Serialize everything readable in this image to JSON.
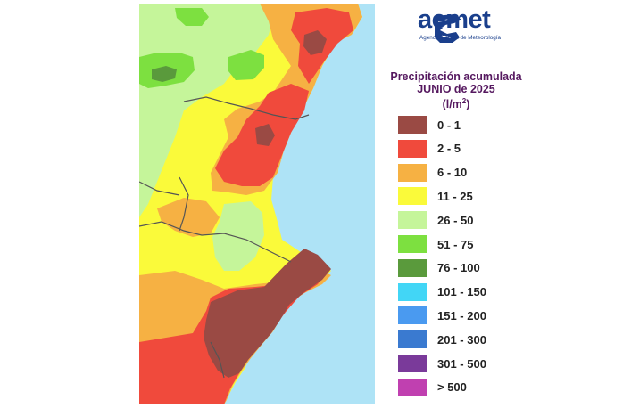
{
  "logo": {
    "word": "aemet",
    "subtitle": "Agencia Estatal de Meteorología"
  },
  "legend": {
    "title_line1": "Precipitación acumulada",
    "title_line2": "JUNIO de 2025",
    "unit_prefix": "(l/m",
    "unit_exp": "2",
    "unit_suffix": ")",
    "items": [
      {
        "label": "0 - 1",
        "color": "#9a4a44"
      },
      {
        "label": "2 - 5",
        "color": "#f04a3c"
      },
      {
        "label": "6 - 10",
        "color": "#f6b143"
      },
      {
        "label": "11 - 25",
        "color": "#fafa3a"
      },
      {
        "label": "26 - 50",
        "color": "#c5f59a"
      },
      {
        "label": "51 - 75",
        "color": "#7de040"
      },
      {
        "label": "76 - 100",
        "color": "#5a9a3c"
      },
      {
        "label": "101 - 150",
        "color": "#42d6f6"
      },
      {
        "label": "151 - 200",
        "color": "#4a9af0"
      },
      {
        "label": "201 - 300",
        "color": "#3a7ad0"
      },
      {
        "label": "301 - 500",
        "color": "#7a3a9a"
      },
      {
        "label": "> 500",
        "color": "#c040b0"
      }
    ]
  },
  "map": {
    "sea_color": "#aee3f6",
    "border_color": "#555555"
  }
}
